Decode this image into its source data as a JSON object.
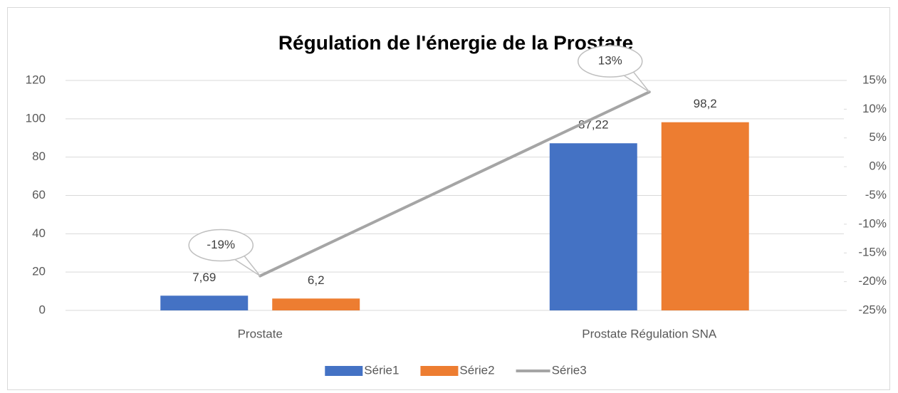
{
  "chart_data": {
    "type": "bar",
    "title": "Régulation de l'énergie de la Prostate",
    "categories": [
      "Prostate",
      "Prostate Régulation SNA"
    ],
    "series": [
      {
        "name": "Série1",
        "color": "#4472c4",
        "values": [
          7.69,
          87.22
        ],
        "value_labels": [
          "7,69",
          "87,22"
        ]
      },
      {
        "name": "Série2",
        "color": "#ed7d31",
        "values": [
          6.2,
          98.2
        ],
        "value_labels": [
          "6,2",
          "98,2"
        ]
      },
      {
        "name": "Série3",
        "type": "line",
        "axis": "y2",
        "color": "#a5a5a5",
        "values": [
          -19,
          13
        ],
        "value_labels": [
          "-19%",
          "13%"
        ]
      }
    ],
    "ylim": [
      0,
      120
    ],
    "yticks": [
      0,
      20,
      40,
      60,
      80,
      100,
      120
    ],
    "y2lim": [
      -25,
      15
    ],
    "y2ticks": [
      {
        "value": -25,
        "label": "-25%"
      },
      {
        "value": -20,
        "label": "-20%"
      },
      {
        "value": -15,
        "label": "-15%"
      },
      {
        "value": -10,
        "label": "-10%"
      },
      {
        "value": -5,
        "label": "-5%"
      },
      {
        "value": 0,
        "label": "0%"
      },
      {
        "value": 5,
        "label": "5%"
      },
      {
        "value": 10,
        "label": "10%"
      },
      {
        "value": 15,
        "label": "15%"
      }
    ],
    "grid": true,
    "legend": "bottom"
  }
}
